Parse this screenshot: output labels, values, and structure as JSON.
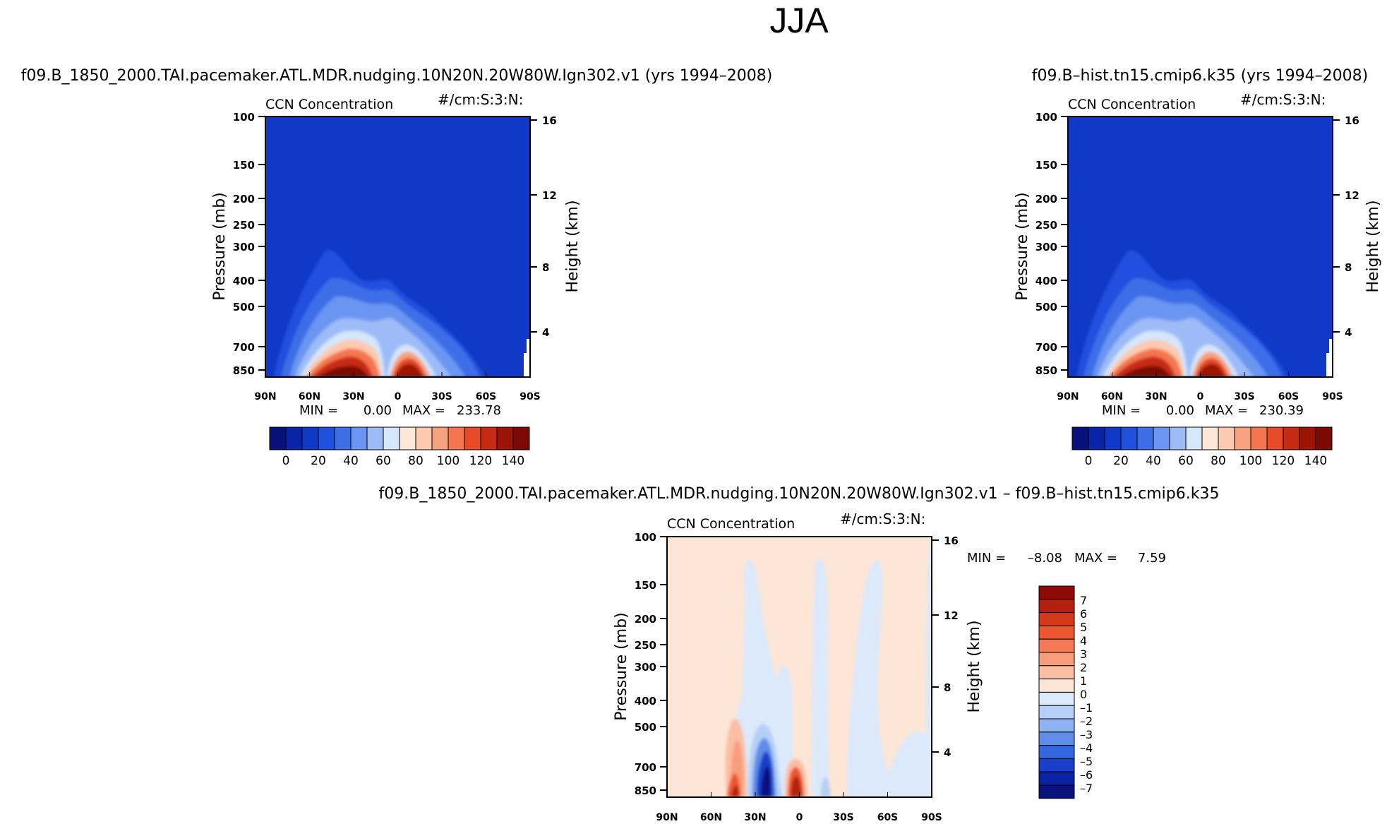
{
  "page_title": "JJA",
  "chart_data": [
    {
      "type": "heatmap",
      "panel_title": "f09.B_1850_2000.TAI.pacemaker.ATL.MDR.nudging.10N20N.20W80W.Ign302.v1  (yrs  1994–2008)",
      "variable": "CCN  Concentration",
      "units": "#/cm:S:3:N:",
      "xlabel": "",
      "ylabel": "Pressure  (mb)",
      "ylabel_right": "Height  (km)",
      "x_ticks": [
        "90N",
        "60N",
        "30N",
        "0",
        "30S",
        "60S",
        "90S"
      ],
      "y_ticks": [
        100,
        150,
        200,
        250,
        300,
        400,
        500,
        700,
        850
      ],
      "y_ticks_right": [
        16,
        12,
        8,
        4
      ],
      "ylim": [
        100,
        1000
      ],
      "stats": {
        "min_label": "MIN =",
        "min": "0.00",
        "max_label": "MAX =",
        "max": "233.78"
      },
      "colorbar": {
        "orientation": "horizontal",
        "labels": [
          "0",
          "20",
          "40",
          "60",
          "80",
          "100",
          "120",
          "140"
        ],
        "colors": [
          "#08107a",
          "#0a24a8",
          "#0f39c6",
          "#2050de",
          "#3d6ee8",
          "#6a96f2",
          "#9dbcf7",
          "#d6e6fb",
          "#fde8d8",
          "#fbcab0",
          "#f7a27e",
          "#f47650",
          "#e64a26",
          "#c72a12",
          "#9c1406",
          "#7a0a02"
        ]
      },
      "field_peaks": [
        {
          "lat": -35,
          "pressure": 850,
          "value": 150
        },
        {
          "lat": 8,
          "pressure": 850,
          "value": 150
        }
      ]
    },
    {
      "type": "heatmap",
      "panel_title": "f09.B–hist.tn15.cmip6.k35  (yrs  1994–2008)",
      "variable": "CCN  Concentration",
      "units": "#/cm:S:3:N:",
      "ylabel": "Pressure  (mb)",
      "ylabel_right": "Height  (km)",
      "x_ticks": [
        "90N",
        "60N",
        "30N",
        "0",
        "30S",
        "60S",
        "90S"
      ],
      "y_ticks": [
        100,
        150,
        200,
        250,
        300,
        400,
        500,
        700,
        850
      ],
      "y_ticks_right": [
        16,
        12,
        8,
        4
      ],
      "ylim": [
        100,
        1000
      ],
      "stats": {
        "min_label": "MIN =",
        "min": "0.00",
        "max_label": "MAX =",
        "max": "230.39"
      },
      "colorbar": {
        "orientation": "horizontal",
        "labels": [
          "0",
          "20",
          "40",
          "60",
          "80",
          "100",
          "120",
          "140"
        ],
        "colors": [
          "#08107a",
          "#0a24a8",
          "#0f39c6",
          "#2050de",
          "#3d6ee8",
          "#6a96f2",
          "#9dbcf7",
          "#d6e6fb",
          "#fde8d8",
          "#fbcab0",
          "#f7a27e",
          "#f47650",
          "#e64a26",
          "#c72a12",
          "#9c1406",
          "#7a0a02"
        ]
      },
      "field_peaks": [
        {
          "lat": -35,
          "pressure": 850,
          "value": 150
        },
        {
          "lat": 8,
          "pressure": 850,
          "value": 150
        }
      ]
    },
    {
      "type": "heatmap",
      "panel_title": "f09.B_1850_2000.TAI.pacemaker.ATL.MDR.nudging.10N20N.20W80W.Ign302.v1  –  f09.B–hist.tn15.cmip6.k35",
      "variable": "CCN  Concentration",
      "units": "#/cm:S:3:N:",
      "ylabel": "Pressure  (mb)",
      "ylabel_right": "Height  (km)",
      "x_ticks": [
        "90N",
        "60N",
        "30N",
        "0",
        "30S",
        "60S",
        "90S"
      ],
      "y_ticks": [
        100,
        150,
        200,
        250,
        300,
        400,
        500,
        700,
        850
      ],
      "y_ticks_right": [
        16,
        12,
        8,
        4
      ],
      "ylim": [
        100,
        1000
      ],
      "stats": {
        "min_label": "MIN =",
        "min": "–8.08",
        "max_label": "MAX =",
        "max": "7.59"
      },
      "colorbar": {
        "orientation": "vertical",
        "labels": [
          "7",
          "6",
          "5",
          "4",
          "3",
          "2",
          "1",
          "0",
          "–1",
          "–2",
          "–3",
          "–4",
          "–5",
          "–6",
          "–7"
        ],
        "colors": [
          "#8e0a04",
          "#b3200e",
          "#d8381a",
          "#ec5530",
          "#f47a55",
          "#f89c7a",
          "#fbbea2",
          "#fde6d6",
          "#dce9fb",
          "#b6cff6",
          "#8fb2f0",
          "#5f8de8",
          "#3467dd",
          "#1740c8",
          "#0a22a3",
          "#08117d"
        ]
      },
      "field_peaks": [
        {
          "lat": -30,
          "pressure": 850,
          "value": -7
        },
        {
          "lat": -1,
          "pressure": 850,
          "value": 7
        },
        {
          "lat": -48,
          "pressure": 850,
          "value": 6
        }
      ]
    }
  ]
}
